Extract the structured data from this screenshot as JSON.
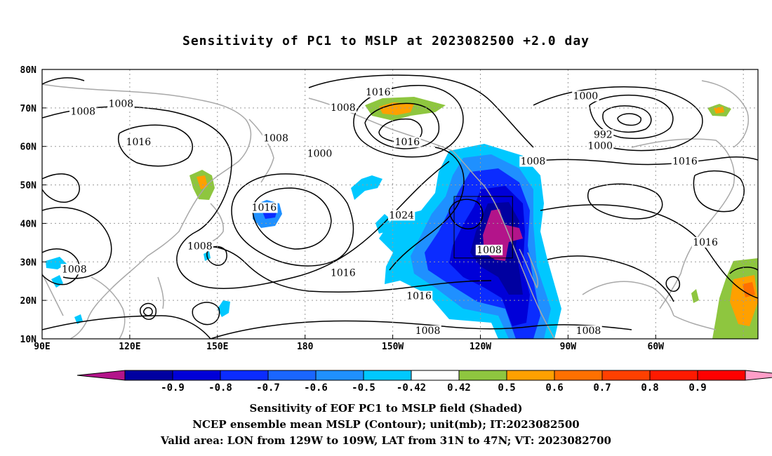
{
  "title": "Sensitivity of PC1 to MSLP at 2023082500 +2.0 day",
  "map": {
    "lon_labels": [
      "90E",
      "120E",
      "150E",
      "180",
      "150W",
      "120W",
      "90W",
      "60W"
    ],
    "lat_labels": [
      "80N",
      "70N",
      "60N",
      "50N",
      "40N",
      "30N",
      "20N",
      "10N"
    ],
    "contour_labels": [
      {
        "text": "1016",
        "lon": 205,
        "lat": 74
      },
      {
        "text": "1000",
        "lon": 276,
        "lat": 73
      },
      {
        "text": "1008",
        "lon": 117,
        "lat": 71
      },
      {
        "text": "1008",
        "lon": 104,
        "lat": 69
      },
      {
        "text": "1008",
        "lon": 193,
        "lat": 70
      },
      {
        "text": "1008",
        "lon": 170,
        "lat": 62
      },
      {
        "text": "992",
        "lon": 282,
        "lat": 63
      },
      {
        "text": "1000",
        "lon": 281,
        "lat": 60
      },
      {
        "text": "1016",
        "lon": 123,
        "lat": 61
      },
      {
        "text": "1016",
        "lon": 215,
        "lat": 61
      },
      {
        "text": "1000",
        "lon": 185,
        "lat": 58
      },
      {
        "text": "1008",
        "lon": 258,
        "lat": 56
      },
      {
        "text": "1016",
        "lon": 310,
        "lat": 56
      },
      {
        "text": "1016",
        "lon": 166,
        "lat": 44
      },
      {
        "text": "1024",
        "lon": 213,
        "lat": 42
      },
      {
        "text": "1008",
        "lon": 144,
        "lat": 34
      },
      {
        "text": "1008",
        "lon": 243,
        "lat": 33
      },
      {
        "text": "1016",
        "lon": 317,
        "lat": 35
      },
      {
        "text": "1016",
        "lon": 193,
        "lat": 27
      },
      {
        "text": "1008",
        "lon": 101,
        "lat": 28
      },
      {
        "text": "1016",
        "lon": 219,
        "lat": 21
      },
      {
        "text": "1008",
        "lon": 222,
        "lat": 12
      },
      {
        "text": "1008",
        "lon": 277,
        "lat": 12
      }
    ],
    "valid_box": {
      "lon_from": -129,
      "lon_to": -109,
      "lat_from": 31,
      "lat_to": 47
    }
  },
  "colorbar": {
    "colors": [
      "#b3148a",
      "#0000a0",
      "#0000d8",
      "#0b2cff",
      "#1a66ff",
      "#1f90ff",
      "#00c8ff",
      "#ffffff",
      "#8ec63f",
      "#ffa000",
      "#ff7000",
      "#ff4000",
      "#ff1a00",
      "#ff0000",
      "#ff9ec8"
    ],
    "labels": [
      "-0.9",
      "-0.8",
      "-0.7",
      "-0.6",
      "-0.5",
      "-0.42",
      "0.42",
      "0.5",
      "0.6",
      "0.7",
      "0.8",
      "0.9"
    ]
  },
  "caption": {
    "line1": "Sensitivity of EOF PC1 to MSLP field (Shaded)",
    "line2": "NCEP ensemble mean MSLP (Contour); unit(mb); IT:2023082500",
    "line3": "Valid area: LON from 129W to 109W, LAT from 31N to 47N; VT: 2023082700"
  }
}
